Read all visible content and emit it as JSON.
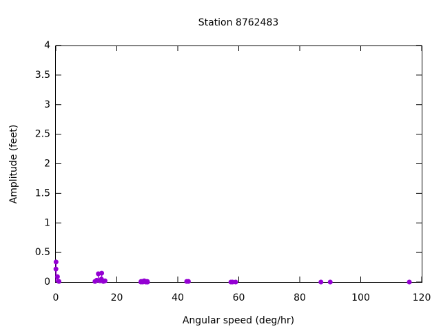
{
  "chart_data": {
    "type": "scatter",
    "style": "impulses",
    "title": "Station 8762483",
    "xlabel": "Angular speed (deg/hr)",
    "ylabel": "Amplitude (feet)",
    "color": "#9400d3",
    "x": [
      0.04,
      0.08,
      0.54,
      1.02,
      12.85,
      13.4,
      13.94,
      14.5,
      14.96,
      15.04,
      15.59,
      16.14,
      27.9,
      27.97,
      28.44,
      28.51,
      28.98,
      29.46,
      29.53,
      29.96,
      30.0,
      30.04,
      30.08,
      42.93,
      43.48,
      57.42,
      57.97,
      58.98,
      86.95,
      90.0,
      115.94
    ],
    "values": [
      0.22,
      0.34,
      0.09,
      0.01,
      0.01,
      0.03,
      0.14,
      0.02,
      0.05,
      0.15,
      0.01,
      0.02,
      0.0,
      0.01,
      0.01,
      0.0,
      0.02,
      0.0,
      0.01,
      0.0,
      0.01,
      0.0,
      0.0,
      0.01,
      0.01,
      0.0,
      0.0,
      0.0,
      0.0,
      0.0,
      0.0
    ],
    "xlim": [
      0,
      120
    ],
    "xticks": [
      0,
      20,
      40,
      60,
      80,
      100,
      120
    ],
    "ylim": [
      0,
      4
    ],
    "yticks": [
      0,
      0.5,
      1,
      1.5,
      2,
      2.5,
      3,
      3.5,
      4
    ]
  }
}
